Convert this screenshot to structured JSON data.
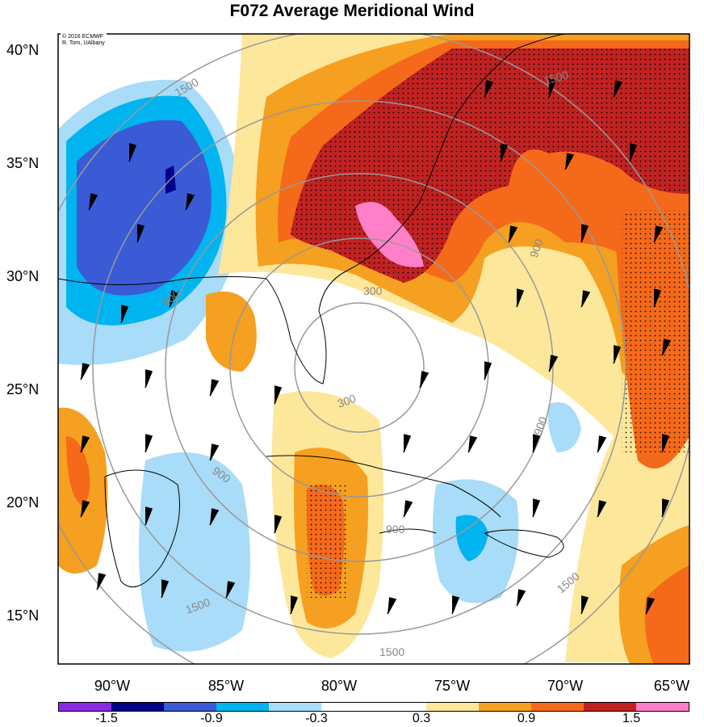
{
  "title": "F072 Average Meridional Wind",
  "credit": {
    "line1": "© 2016 ECMWF",
    "line2": "R. Torn, UAlbany"
  },
  "lat_labels": [
    "40°N",
    "35°N",
    "30°N",
    "25°N",
    "20°N",
    "15°N"
  ],
  "lon_labels": [
    "90°W",
    "85°W",
    "80°W",
    "75°W",
    "70°W",
    "65°W"
  ],
  "contour_labels": [
    "1500",
    "900",
    "900",
    "300",
    "900",
    "900",
    "1500",
    "1500",
    "1500",
    "900",
    "900",
    "1500",
    "300"
  ],
  "colorbar": {
    "colors": [
      "#8a2be2",
      "#00008b",
      "#3b5bd6",
      "#00b4f0",
      "#a8dcf8",
      "#ffffff",
      "#ffffff",
      "#fde79a",
      "#f5a020",
      "#f5691a",
      "#c02222",
      "#ff80c8"
    ],
    "labels": [
      "-1.5",
      "-0.9",
      "-0.3",
      "0.3",
      "0.9",
      "1.5"
    ]
  },
  "map_extent": {
    "lon_min": -92.5,
    "lon_max": -65,
    "lat_min": 12.5,
    "lat_max": 40.5
  }
}
